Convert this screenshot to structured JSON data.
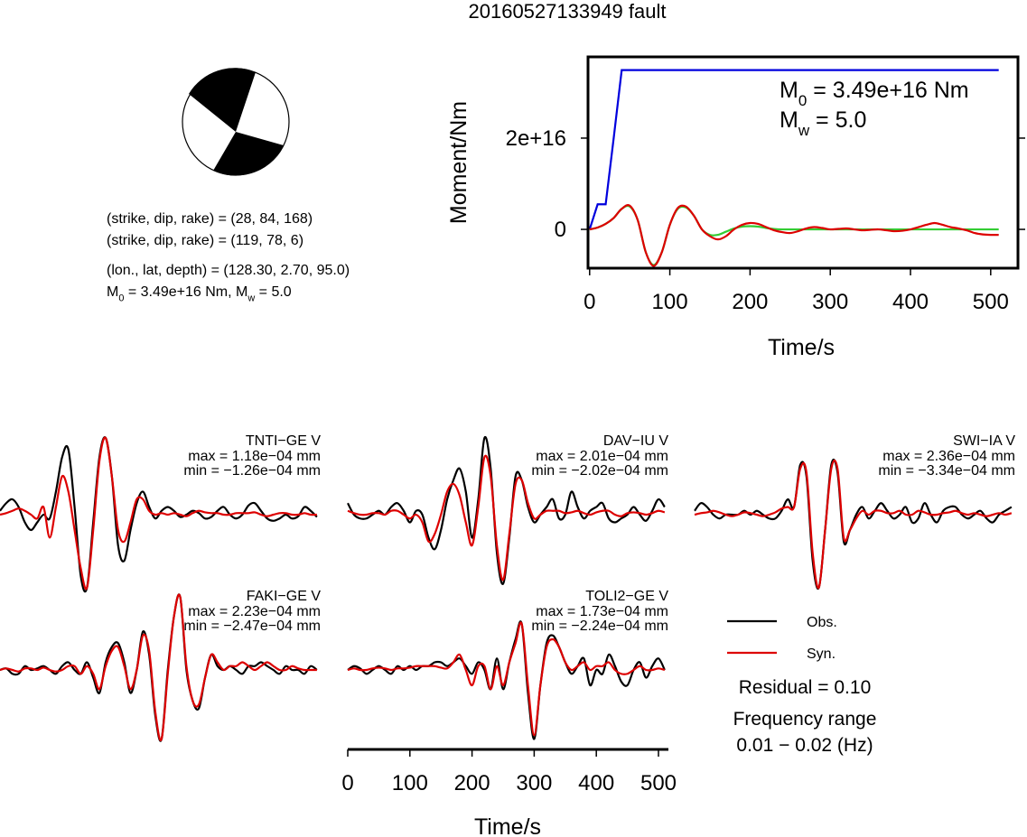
{
  "title": "20160527133949 fault",
  "focal_mechanism": {
    "lines": [
      "(strike, dip, rake) = (28, 84, 168)",
      "(strike, dip, rake) = (119, 78, 6)",
      "(lon., lat, depth) = (128.30, 2.70, 95.0)"
    ],
    "moment_line": [
      "M",
      "0",
      " = 3.49e+16 Nm, M",
      "w",
      " = 5.0"
    ]
  },
  "chart_data": [
    {
      "type": "line",
      "xlabel": "Time/s",
      "ylabel": "Moment/Nm",
      "annotations": [
        [
          "M",
          "0",
          " = 3.49e+16 Nm"
        ],
        [
          "M",
          "w",
          " = 5.0"
        ]
      ],
      "xlim": [
        -2,
        534
      ],
      "ylim": [
        -8500000000000000.0,
        3.78e+16
      ],
      "xticks": [
        0,
        100,
        200,
        300,
        400,
        500
      ],
      "yticks": [
        0,
        {
          "value": 2e+16,
          "label": "2e+16"
        }
      ],
      "x": [
        0,
        10,
        20,
        30,
        40,
        50,
        60,
        70,
        80,
        90,
        100,
        110,
        120,
        130,
        140,
        150,
        160,
        170,
        180,
        190,
        200,
        210,
        220,
        230,
        240,
        250,
        260,
        270,
        280,
        290,
        300,
        310,
        320,
        330,
        340,
        350,
        360,
        370,
        380,
        390,
        400,
        410,
        420,
        430,
        440,
        450,
        460,
        470,
        480,
        490,
        500,
        510
      ],
      "series": [
        {
          "color": "#0000dd",
          "values": [
            0,
            5500000000000000.0,
            5500000000000000.0,
            2e+16,
            3.49e+16,
            3.49e+16,
            3.49e+16,
            3.49e+16,
            3.49e+16,
            3.49e+16,
            3.49e+16,
            3.49e+16,
            3.49e+16,
            3.49e+16,
            3.49e+16,
            3.49e+16,
            3.49e+16,
            3.49e+16,
            3.49e+16,
            3.49e+16,
            3.49e+16,
            3.49e+16,
            3.49e+16,
            3.49e+16,
            3.49e+16,
            3.49e+16,
            3.49e+16,
            3.49e+16,
            3.49e+16,
            3.49e+16,
            3.49e+16,
            3.49e+16,
            3.49e+16,
            3.49e+16,
            3.49e+16,
            3.49e+16,
            3.49e+16,
            3.49e+16,
            3.49e+16,
            3.49e+16,
            3.49e+16,
            3.49e+16,
            3.49e+16,
            3.49e+16,
            3.49e+16,
            3.49e+16,
            3.49e+16,
            3.49e+16,
            3.49e+16,
            3.49e+16,
            3.49e+16,
            3.49e+16
          ]
        },
        {
          "color": "#33cc33",
          "values": [
            0,
            400000000000000.0,
            1200000000000000.0,
            2500000000000000.0,
            4500000000000000.0,
            5000000000000000.0,
            2000000000000000.0,
            -5000000000000000.0,
            -7800000000000000.0,
            -5000000000000000.0,
            1000000000000000.0,
            4500000000000000.0,
            4800000000000000.0,
            3000000000000000.0,
            0,
            -1200000000000000.0,
            -1200000000000000.0,
            -500000000000000.0,
            200000000000000.0,
            600000000000000.0,
            700000000000000.0,
            600000000000000.0,
            300000000000000.0,
            100000000000000.0,
            0,
            0,
            0,
            0,
            0,
            0,
            0,
            0,
            0,
            0,
            0,
            0,
            0,
            0,
            0,
            0,
            0,
            0,
            0,
            0,
            0,
            0,
            0,
            0,
            0,
            0,
            0,
            0
          ]
        },
        {
          "color": "#dd0000",
          "values": [
            0,
            400000000000000.0,
            1200000000000000.0,
            2500000000000000.0,
            4500000000000000.0,
            5200000000000000.0,
            2000000000000000.0,
            -5000000000000000.0,
            -8000000000000000.0,
            -5000000000000000.0,
            1000000000000000.0,
            4700000000000000.0,
            5000000000000000.0,
            3000000000000000.0,
            0,
            -1500000000000000.0,
            -2200000000000000.0,
            -1500000000000000.0,
            0,
            1000000000000000.0,
            1400000000000000.0,
            1200000000000000.0,
            500000000000000.0,
            -200000000000000.0,
            -600000000000000.0,
            -800000000000000.0,
            -400000000000000.0,
            200000000000000.0,
            500000000000000.0,
            300000000000000.0,
            0,
            100000000000000.0,
            200000000000000.0,
            0,
            -200000000000000.0,
            -100000000000000.0,
            0,
            -200000000000000.0,
            -400000000000000.0,
            -300000000000000.0,
            0,
            500000000000000.0,
            1000000000000000.0,
            1400000000000000.0,
            1000000000000000.0,
            500000000000000.0,
            200000000000000.0,
            -200000000000000.0,
            -800000000000000.0,
            -1100000000000000.0,
            -1200000000000000.0,
            -1200000000000000.0
          ]
        }
      ]
    },
    {
      "type": "waveform",
      "xlabel": "Time/s",
      "xlim": [
        0,
        516
      ],
      "xticks": [
        0,
        100,
        200,
        300,
        400,
        500
      ],
      "legend": [
        {
          "name": "Obs.",
          "color": "#000000"
        },
        {
          "name": "Syn.",
          "color": "#dd0000"
        }
      ],
      "residual_label": "Residual = 0.10",
      "frequency_label": [
        "Frequency range",
        "0.01 − 0.02 (Hz)"
      ],
      "x": [
        0,
        10,
        20,
        30,
        40,
        50,
        60,
        70,
        80,
        90,
        100,
        110,
        120,
        130,
        140,
        150,
        160,
        170,
        180,
        190,
        200,
        210,
        220,
        230,
        240,
        250,
        260,
        270,
        280,
        290,
        300,
        310,
        320,
        330,
        340,
        350,
        360,
        370,
        380,
        390,
        400,
        410,
        420,
        430,
        440,
        450,
        460,
        470,
        480,
        490,
        500,
        510
      ],
      "stations": [
        {
          "name": "TNTI−GE V",
          "max_label": "max = 1.18e−04 mm",
          "min_label": "min = −1.26e−04 mm",
          "obs": [
            0.05,
            0.15,
            0.2,
            0.1,
            -0.1,
            -0.2,
            -0.1,
            0,
            -0.05,
            0.3,
            0.75,
            0.85,
            0.1,
            -0.8,
            -0.95,
            -0.1,
            0.75,
            1.0,
            0.5,
            -0.4,
            -0.6,
            -0.2,
            0.15,
            0.3,
            0.1,
            -0.05,
            0.05,
            0.1,
            0.05,
            -0.03,
            0,
            0.05,
            0.02,
            -0.05,
            -0.03,
            0.05,
            0.1,
            0,
            -0.05,
            0,
            0.12,
            0.15,
            0.05,
            -0.05,
            -0.08,
            -0.05,
            0,
            -0.05,
            -0.02,
            0.1,
            0.05,
            -0.03
          ],
          "syn": [
            0,
            0.02,
            0.05,
            0.08,
            0.05,
            0,
            -0.05,
            0.1,
            -0.3,
            0.1,
            0.5,
            0.3,
            -0.2,
            -0.7,
            -0.95,
            -0.2,
            0.7,
            1.0,
            0.5,
            -0.2,
            -0.35,
            -0.1,
            0.2,
            0.2,
            0.05,
            0,
            0.02,
            0,
            0.02,
            0,
            -0.02,
            0.02,
            0.05,
            0.03,
            0.02,
            0.02,
            0,
            0,
            0.02,
            0.02,
            0.02,
            0.03,
            0,
            -0.02,
            0,
            0.02,
            0.02,
            0,
            0,
            0.02,
            0,
            0
          ]
        },
        {
          "name": "DAV−IU V",
          "max_label": "max = 2.01e−04 mm",
          "min_label": "min = −2.02e−04 mm",
          "obs": [
            0.15,
            0,
            -0.05,
            -0.05,
            0,
            0.05,
            0,
            0.1,
            0.15,
            0.05,
            -0.1,
            0.05,
            0,
            -0.3,
            -0.45,
            -0.2,
            0.2,
            0.45,
            0.6,
            0.3,
            -0.3,
            0.2,
            1.0,
            0.6,
            -0.5,
            -0.9,
            -0.3,
            0.5,
            0.45,
            0.1,
            -0.1,
            0,
            0.1,
            0.2,
            -0.05,
            0,
            0.3,
            0.1,
            -0.05,
            0.05,
            0.1,
            0.15,
            -0.05,
            -0.1,
            -0.05,
            0,
            0.1,
            0,
            -0.08,
            0.05,
            0.2,
            0.1
          ],
          "syn": [
            0.05,
            0.02,
            0,
            0,
            0.02,
            0.02,
            0,
            0.05,
            0.05,
            0,
            -0.05,
            0,
            -0.1,
            -0.35,
            -0.25,
            0,
            0.3,
            0.4,
            0.25,
            -0.1,
            -0.4,
            0.1,
            0.75,
            0.5,
            -0.4,
            -0.85,
            -0.25,
            0.4,
            0.45,
            0.15,
            -0.05,
            0,
            0.05,
            0.05,
            0.05,
            0.02,
            0.03,
            0.05,
            0.02,
            0,
            0.03,
            0.05,
            0.05,
            0,
            -0.02,
            0.02,
            0.03,
            0.02,
            0,
            0.02,
            0.05,
            0.03
          ]
        },
        {
          "name": "SWI−IA V",
          "max_label": "max = 2.36e−04 mm",
          "min_label": "min = −3.34e−04 mm",
          "obs": [
            0.05,
            0.15,
            0.1,
            0,
            -0.05,
            0,
            0,
            0,
            0.05,
            0,
            0.05,
            0,
            -0.05,
            -0.05,
            0.05,
            0.2,
            0.1,
            0.65,
            0.5,
            -0.6,
            -0.95,
            -0.2,
            0.65,
            0.55,
            -0.35,
            -0.2,
            0,
            0.1,
            -0.05,
            0.05,
            0.15,
            0.05,
            -0.05,
            0,
            0.1,
            -0.1,
            -0.05,
            0.15,
            0,
            -0.1,
            0.05,
            0.1,
            0.1,
            0,
            -0.05,
            0,
            0.05,
            -0.05,
            -0.1,
            0,
            0.05,
            0.1
          ],
          "syn": [
            0,
            0.02,
            0.03,
            0.05,
            0.03,
            0,
            -0.02,
            0,
            0.03,
            0.02,
            0,
            -0.02,
            0,
            0.03,
            0.08,
            0.1,
            0.1,
            0.6,
            0.55,
            -0.5,
            -0.95,
            -0.2,
            0.6,
            0.6,
            -0.3,
            -0.2,
            -0.05,
            0.05,
            0,
            0.05,
            0.05,
            0.02,
            0.02,
            0.05,
            0,
            0,
            0.05,
            0.03,
            0,
            0,
            0.02,
            0.03,
            0.05,
            0.02,
            0,
            0.02,
            0,
            -0.02,
            0,
            0.02,
            0,
            0.02
          ]
        },
        {
          "name": "FAKI−GE V",
          "max_label": "max = 2.23e−04 mm",
          "min_label": "min = −2.47e−04 mm",
          "obs": [
            0,
            0.02,
            -0.05,
            -0.05,
            0.05,
            0,
            0.02,
            0.05,
            0,
            -0.05,
            0.05,
            0.1,
            0,
            -0.05,
            0.1,
            -0.1,
            -0.3,
            0.1,
            0.3,
            0.35,
            0.1,
            -0.3,
            0,
            0.5,
            0.2,
            -0.6,
            -0.9,
            0,
            0.7,
            0.95,
            0,
            -0.4,
            -0.5,
            -0.1,
            0.2,
            0.05,
            0,
            0.05,
            0,
            -0.05,
            0.05,
            0.05,
            0.1,
            0.05,
            0,
            -0.05,
            0.05,
            0,
            0,
            -0.05,
            0.05,
            0
          ],
          "syn": [
            0,
            0.02,
            0,
            -0.02,
            0.02,
            0.02,
            0,
            0.03,
            0,
            -0.02,
            0,
            0.05,
            0.05,
            -0.05,
            0.05,
            -0.05,
            -0.25,
            0.05,
            0.25,
            0.3,
            0.05,
            -0.25,
            0,
            0.45,
            0.25,
            -0.55,
            -0.9,
            -0.05,
            0.7,
            0.95,
            0.05,
            -0.4,
            -0.45,
            -0.1,
            0.2,
            0.1,
            0,
            0.05,
            0.05,
            0.1,
            0.05,
            0,
            0.05,
            0.1,
            0.05,
            0,
            0,
            0.05,
            0.02,
            0,
            0,
            0
          ]
        },
        {
          "name": "TOLI2−GE V",
          "max_label": "max = 1.73e−04 mm",
          "min_label": "min = −2.24e−04 mm",
          "obs": [
            0,
            0.05,
            0.02,
            -0.05,
            0,
            0.05,
            0,
            -0.05,
            0.05,
            0,
            0.05,
            0,
            0.05,
            0.05,
            0.1,
            0.1,
            0.05,
            0.1,
            0.15,
            0.05,
            -0.05,
            0.1,
            0,
            -0.25,
            0.15,
            -0.25,
            0.1,
            0.4,
            0.6,
            -0.3,
            -0.9,
            -0.2,
            0.35,
            0.45,
            0.3,
            0.1,
            -0.05,
            0.05,
            0.15,
            -0.2,
            0,
            -0.05,
            0.2,
            0.05,
            -0.15,
            -0.2,
            0,
            0.1,
            -0.1,
            0.05,
            0.15,
            0
          ],
          "syn": [
            0,
            0.02,
            0,
            0,
            0.02,
            0.03,
            0.02,
            0,
            0.02,
            0.02,
            0.03,
            0.05,
            0.05,
            0.05,
            0.05,
            0.03,
            0.02,
            0.1,
            0.2,
            0,
            -0.2,
            0.05,
            0.05,
            -0.25,
            0.05,
            -0.2,
            0.1,
            0.35,
            0.6,
            -0.2,
            -0.85,
            -0.2,
            0.3,
            0.4,
            0.3,
            0.1,
            0,
            0.05,
            0.1,
            0,
            0.05,
            0.05,
            0.1,
            0,
            -0.05,
            -0.05,
            0,
            0.05,
            0,
            0,
            0.02,
            0
          ]
        }
      ]
    }
  ]
}
